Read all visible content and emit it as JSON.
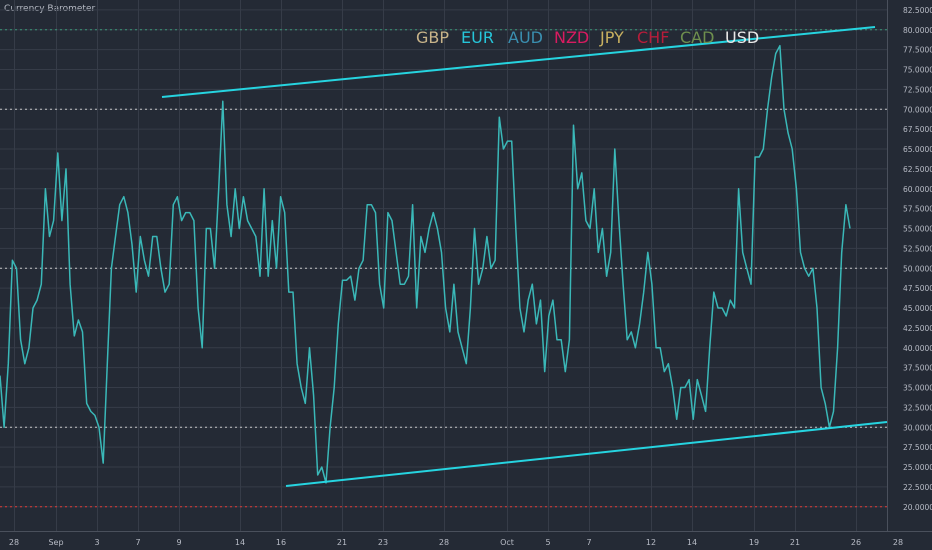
{
  "title": "Currency Barometer",
  "chart_data": {
    "type": "line",
    "ylim": [
      17.5,
      82.5
    ],
    "y_ticks": [
      "20.00000",
      "22.50000",
      "25.00000",
      "27.50000",
      "30.00000",
      "32.50000",
      "35.00000",
      "37.50000",
      "40.00000",
      "42.50000",
      "45.00000",
      "47.50000",
      "50.00000",
      "52.50000",
      "55.00000",
      "57.50000",
      "60.00000",
      "62.50000",
      "65.00000",
      "67.50000",
      "70.00000",
      "72.50000",
      "75.00000",
      "77.50000",
      "80.00000",
      "82.50000"
    ],
    "x_ticks": [
      "28",
      "Sep",
      "3",
      "7",
      "9",
      "14",
      "16",
      "21",
      "23",
      "28",
      "Oct",
      "5",
      "7",
      "12",
      "14",
      "19",
      "21",
      "26",
      "28"
    ],
    "legend": [
      {
        "label": "GBP",
        "color": "#c8b48a"
      },
      {
        "label": "EUR",
        "color": "#26c6da"
      },
      {
        "label": "AUD",
        "color": "#3a8fb0"
      },
      {
        "label": "NZD",
        "color": "#d81b60"
      },
      {
        "label": "JPY",
        "color": "#c8b060"
      },
      {
        "label": "CHF",
        "color": "#b71c3a"
      },
      {
        "label": "CAD",
        "color": "#6e8f4e"
      },
      {
        "label": "USD",
        "color": "#e8e8e8"
      }
    ],
    "line_color": "#3ab8b8",
    "trend_color": "#26d4e0",
    "reference_lines": [
      {
        "value": 80,
        "color": "#3a9a7a",
        "style": "dotted"
      },
      {
        "value": 70,
        "color": "#c8c8c8",
        "style": "dotted"
      },
      {
        "value": 50,
        "color": "#c8c8c8",
        "style": "dotted"
      },
      {
        "value": 30,
        "color": "#c8c8c8",
        "style": "dotted"
      },
      {
        "value": 20,
        "color": "#e53935",
        "style": "dotted"
      }
    ],
    "trendlines": [
      {
        "from": [
          0,
          71
        ],
        "to": [
          0,
          80
        ]
      },
      {
        "from": [
          0,
          22.5
        ],
        "to": [
          0,
          30.5
        ]
      }
    ],
    "series": [
      {
        "values": [
          36.5,
          30,
          38,
          51,
          50,
          41,
          38,
          40,
          45,
          46,
          48,
          60,
          54,
          56,
          64.5,
          56,
          62.5,
          48,
          41.5,
          43.5,
          42,
          33,
          32,
          31.5,
          30,
          25.5,
          38,
          50,
          54,
          58,
          59,
          57,
          53,
          47,
          54,
          51,
          49,
          54,
          54,
          50,
          47,
          48,
          58,
          59,
          56,
          57,
          57,
          56,
          45,
          40,
          55,
          55,
          50,
          60,
          71,
          58,
          54,
          60,
          55,
          59,
          56,
          55,
          54,
          49,
          60,
          49,
          56,
          50,
          59,
          57,
          47,
          47,
          38,
          35,
          33,
          40,
          34,
          24,
          25,
          23,
          30,
          35,
          43,
          48.5,
          48.5,
          49,
          46,
          50,
          51,
          58,
          58,
          57,
          48,
          45,
          57,
          56,
          52,
          48,
          48,
          49,
          58,
          45,
          54,
          52,
          55,
          57,
          55,
          52,
          45,
          42,
          48,
          42,
          40,
          38,
          45,
          55,
          48,
          50,
          54,
          50,
          51,
          69,
          65,
          66,
          66,
          55,
          45,
          42,
          46,
          48,
          43,
          46,
          37,
          44,
          46,
          41,
          41,
          37,
          41,
          68,
          60,
          62,
          56,
          55,
          60,
          52,
          55,
          49,
          52,
          65,
          56,
          48,
          41,
          42,
          40,
          43,
          47,
          52,
          48,
          40,
          40,
          37,
          38,
          35,
          31,
          35,
          35,
          36,
          31,
          36,
          34,
          32,
          40,
          47,
          45,
          45,
          44,
          46,
          45,
          60,
          52,
          50,
          48,
          64,
          64,
          65,
          70,
          74,
          77,
          78,
          70,
          67,
          65,
          60,
          52,
          50,
          49,
          50,
          45,
          35,
          33,
          30,
          32,
          40,
          52,
          58,
          55
        ]
      }
    ]
  }
}
